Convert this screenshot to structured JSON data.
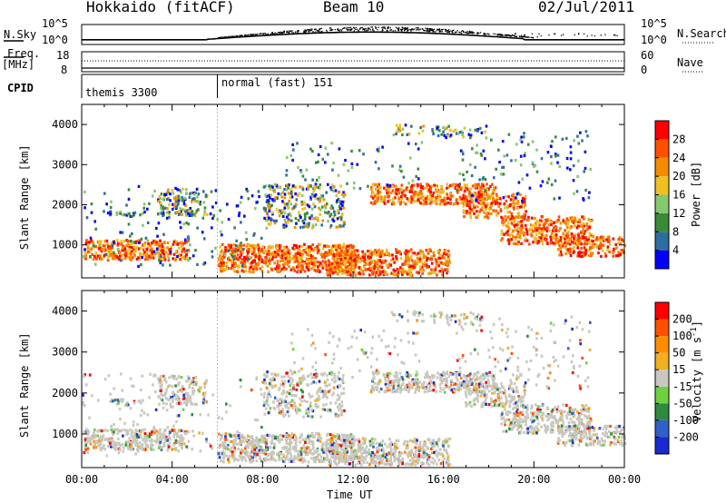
{
  "header": {
    "title": "Hokkaido (fitACF)",
    "beam": "Beam 10",
    "date": "02/Jul/2011"
  },
  "top_panels": {
    "nsky_label": "N.Sky",
    "nsky_ticks": [
      "10^5",
      "10^0"
    ],
    "nsearch_ticks": [
      "10^5",
      "10^0"
    ],
    "nsearch_label": "N.Search",
    "freq_label": "Freq.",
    "freq_unit": "[MHz]",
    "freq_ticks": [
      "18",
      "8"
    ],
    "nave_ticks": [
      "60",
      "0"
    ],
    "nave_label": "Nave",
    "cpid_label": "CPID",
    "cpid_segments": [
      {
        "label": "themis 3300",
        "start_hour": 0
      },
      {
        "label": "normal (fast) 151",
        "start_hour": 6
      }
    ]
  },
  "colors": {
    "power_scale": [
      "#0000ff",
      "#2d6ea0",
      "#3a8a3a",
      "#86c86e",
      "#f0c020",
      "#f58c00",
      "#ff5000",
      "#ff0000"
    ],
    "velocity_scale": [
      "#1a2ad0",
      "#3060c8",
      "#2e8a40",
      "#70d040",
      "#c8c8c0",
      "#f0b020",
      "#ff8c00",
      "#ff5000",
      "#ff0000"
    ]
  },
  "chart_data": [
    {
      "type": "heatmap",
      "name": "power-panel",
      "ylabel": "Slant Range [km]",
      "xlabel": "Time UT",
      "x_ticks": [
        "00:00",
        "04:00",
        "08:00",
        "12:00",
        "16:00",
        "20:00",
        "00:00"
      ],
      "y_ticks": [
        "1000",
        "2000",
        "3000",
        "4000"
      ],
      "xlim": [
        0,
        24
      ],
      "ylim": [
        180,
        4500
      ],
      "colorbar": {
        "label": "Power [dB]",
        "ticks": [
          "28",
          "24",
          "20",
          "16",
          "12",
          "8",
          "4"
        ]
      }
    },
    {
      "type": "heatmap",
      "name": "velocity-panel",
      "ylabel": "Slant Range [km]",
      "xlabel": "Time UT",
      "x_ticks": [
        "00:00",
        "04:00",
        "08:00",
        "12:00",
        "16:00",
        "20:00",
        "00:00"
      ],
      "y_ticks": [
        "1000",
        "2000",
        "3000",
        "4000"
      ],
      "xlim": [
        0,
        24
      ],
      "ylim": [
        180,
        4500
      ],
      "colorbar": {
        "label": "Velocity [m s^-1]",
        "ticks": [
          "200",
          "100",
          "50",
          "15",
          "-15",
          "-50",
          "-100",
          "-200"
        ]
      }
    }
  ]
}
